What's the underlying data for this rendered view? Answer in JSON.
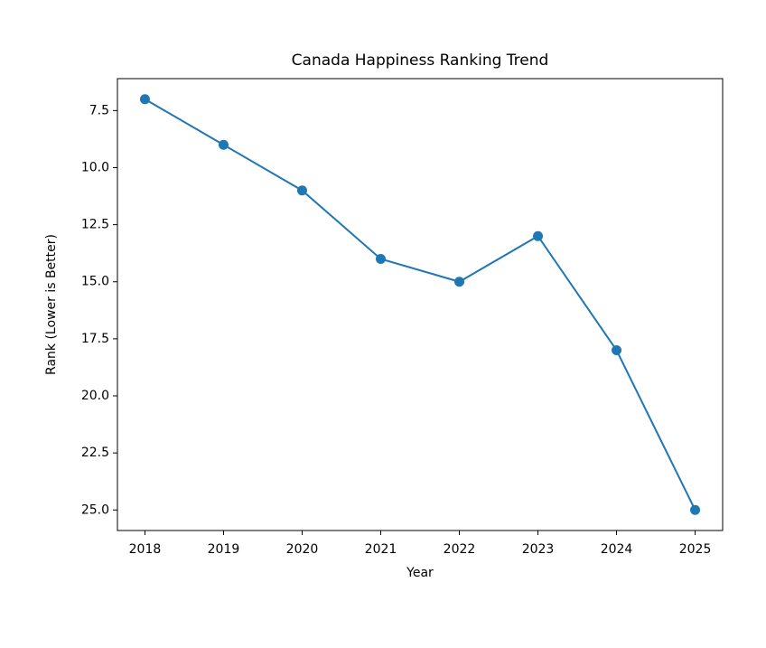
{
  "chart_data": {
    "type": "line",
    "title": "Canada Happiness Ranking Trend",
    "x_label": "Year",
    "y_label": "Rank (Lower is Better)",
    "x": [
      2018,
      2019,
      2020,
      2021,
      2022,
      2023,
      2024,
      2025
    ],
    "values": [
      7,
      9,
      11,
      14,
      15,
      13,
      18,
      25
    ],
    "color": "#1f77b4",
    "marker": "circle",
    "xlim": [
      2017.65,
      2025.35
    ],
    "xticks": [
      2018,
      2019,
      2020,
      2021,
      2022,
      2023,
      2024,
      2025
    ],
    "ylim": [
      25.9,
      6.1
    ],
    "yticks": [
      7.5,
      {
        "value": 10,
        "label": "10.0"
      },
      12.5,
      {
        "value": 15,
        "label": "15.0"
      },
      17.5,
      {
        "value": 20,
        "label": "20.0"
      },
      22.5,
      {
        "value": 25,
        "label": "25.0"
      }
    ],
    "grid": false
  }
}
